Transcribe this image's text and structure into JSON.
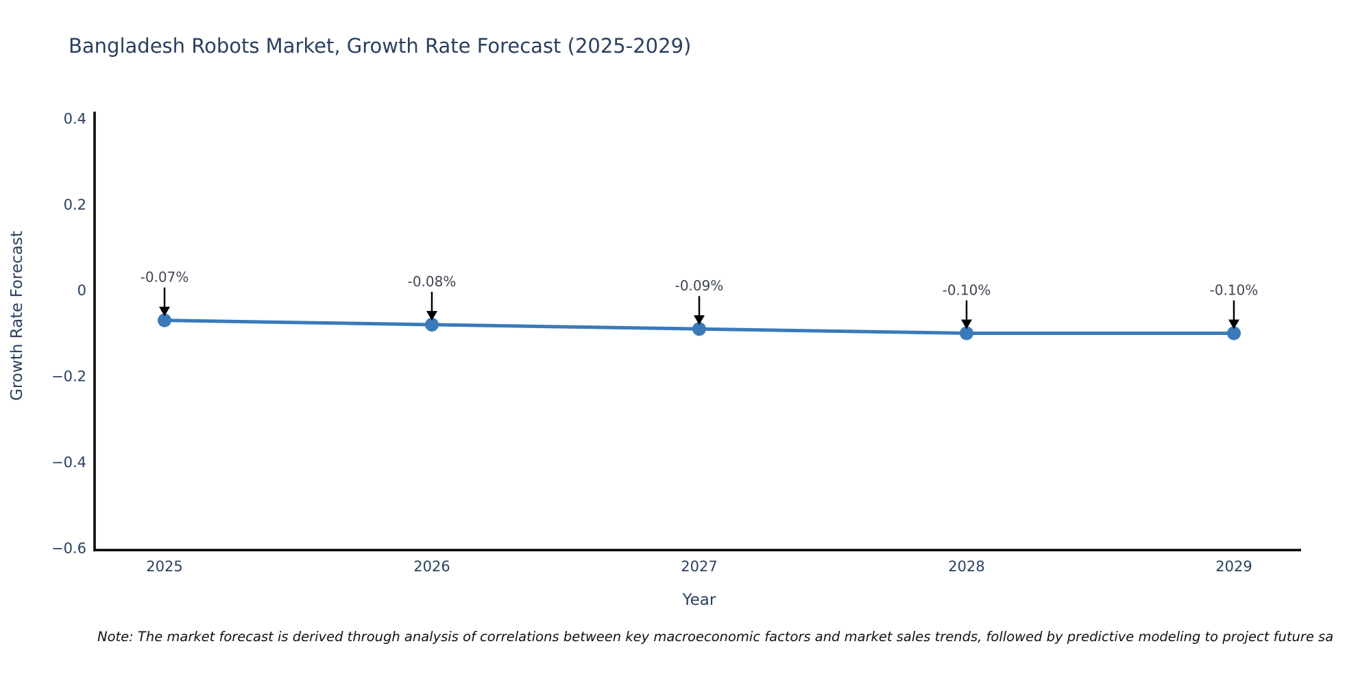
{
  "page": {
    "background": "#ffffff"
  },
  "header": {
    "title": "Bangladesh Robots Market, Growth Rate Forecast (2025-2029)"
  },
  "footnote": {
    "text": "Note: The market forecast is derived through analysis of correlations between key macroeconomic factors and market sales trends, followed by predictive modeling to project future sa"
  },
  "chart_data": {
    "type": "line",
    "title": "Bangladesh Robots Market, Growth Rate Forecast (2025-2029)",
    "xlabel": "Year",
    "ylabel": "Growth Rate Forecast",
    "categories": [
      "2025",
      "2026",
      "2027",
      "2028",
      "2029"
    ],
    "series": [
      {
        "name": "Growth Rate Forecast",
        "values": [
          -0.07,
          -0.08,
          -0.09,
          -0.1,
          -0.1
        ],
        "point_labels": [
          "-0.07%",
          "-0.08%",
          "-0.09%",
          "-0.10%",
          "-0.10%"
        ]
      }
    ],
    "ylim": [
      -0.6,
      0.4
    ],
    "yticks": [
      {
        "v": 0.4,
        "label": "0.4"
      },
      {
        "v": 0.2,
        "label": "0.2"
      },
      {
        "v": 0,
        "label": "0"
      },
      {
        "v": -0.2,
        "label": "−0.2"
      },
      {
        "v": -0.4,
        "label": "−0.4"
      },
      {
        "v": -0.6,
        "label": "−0.6"
      }
    ],
    "grid": false,
    "legend_position": "none",
    "annotations_have_arrows": true
  },
  "colors": {
    "line": "#3a7ab8",
    "marker": "#3a7ab8",
    "axis_line": "#000000",
    "tick_text": "#2a3f5f",
    "title_text": "#2a3f5f",
    "annotation_text": "#404552",
    "arrow": "#000000"
  }
}
